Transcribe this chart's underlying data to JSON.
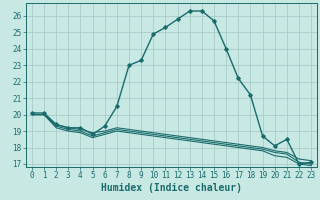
{
  "title": "",
  "xlabel": "Humidex (Indice chaleur)",
  "ylabel": "",
  "xlim": [
    -0.5,
    23.5
  ],
  "ylim": [
    16.8,
    26.8
  ],
  "yticks": [
    17,
    18,
    19,
    20,
    21,
    22,
    23,
    24,
    25,
    26
  ],
  "xticks": [
    0,
    1,
    2,
    3,
    4,
    5,
    6,
    7,
    8,
    9,
    10,
    11,
    12,
    13,
    14,
    15,
    16,
    17,
    18,
    19,
    20,
    21,
    22,
    23
  ],
  "background_color": "#c8e8e4",
  "grid_color": "#a8ccc8",
  "line_color": "#1a6b6b",
  "curves": [
    {
      "x": [
        0,
        1,
        2,
        3,
        4,
        5,
        6,
        7,
        8,
        9,
        10,
        11,
        12,
        13,
        14,
        15,
        16,
        17,
        18,
        19,
        20,
        21,
        22,
        23
      ],
      "y": [
        20.1,
        20.1,
        19.4,
        19.2,
        19.2,
        18.8,
        19.3,
        20.5,
        23.0,
        23.3,
        24.9,
        25.3,
        25.8,
        26.3,
        26.3,
        25.7,
        24.0,
        22.2,
        21.2,
        18.7,
        18.1,
        18.5,
        17.0,
        17.1
      ],
      "marker": "D",
      "markersize": 1.8,
      "linewidth": 1.0
    },
    {
      "x": [
        0,
        1,
        2,
        3,
        4,
        5,
        6,
        7,
        8,
        9,
        10,
        11,
        12,
        13,
        14,
        15,
        16,
        17,
        18,
        19,
        20,
        21,
        22,
        23
      ],
      "y": [
        20.0,
        20.0,
        19.4,
        19.2,
        19.1,
        18.9,
        19.0,
        19.2,
        19.1,
        19.0,
        18.9,
        18.8,
        18.7,
        18.6,
        18.5,
        18.4,
        18.3,
        18.2,
        18.1,
        18.0,
        17.8,
        17.7,
        17.3,
        17.2
      ],
      "marker": null,
      "markersize": 0,
      "linewidth": 0.8
    },
    {
      "x": [
        0,
        1,
        2,
        3,
        4,
        5,
        6,
        7,
        8,
        9,
        10,
        11,
        12,
        13,
        14,
        15,
        16,
        17,
        18,
        19,
        20,
        21,
        22,
        23
      ],
      "y": [
        20.0,
        20.0,
        19.3,
        19.1,
        19.0,
        18.7,
        18.9,
        19.1,
        19.0,
        18.9,
        18.8,
        18.7,
        18.6,
        18.5,
        18.4,
        18.3,
        18.2,
        18.1,
        18.0,
        17.9,
        17.7,
        17.6,
        17.1,
        17.0
      ],
      "marker": null,
      "markersize": 0,
      "linewidth": 0.8
    },
    {
      "x": [
        0,
        1,
        2,
        3,
        4,
        5,
        6,
        7,
        8,
        9,
        10,
        11,
        12,
        13,
        14,
        15,
        16,
        17,
        18,
        19,
        20,
        21,
        22,
        23
      ],
      "y": [
        20.0,
        20.0,
        19.2,
        19.0,
        18.9,
        18.6,
        18.8,
        19.0,
        18.9,
        18.8,
        18.7,
        18.6,
        18.5,
        18.4,
        18.3,
        18.2,
        18.1,
        18.0,
        17.9,
        17.8,
        17.5,
        17.4,
        17.0,
        16.9
      ],
      "marker": null,
      "markersize": 0,
      "linewidth": 0.8
    }
  ],
  "tick_fontsize": 5.5,
  "xlabel_fontsize": 7.0,
  "xlabel_fontweight": "bold"
}
